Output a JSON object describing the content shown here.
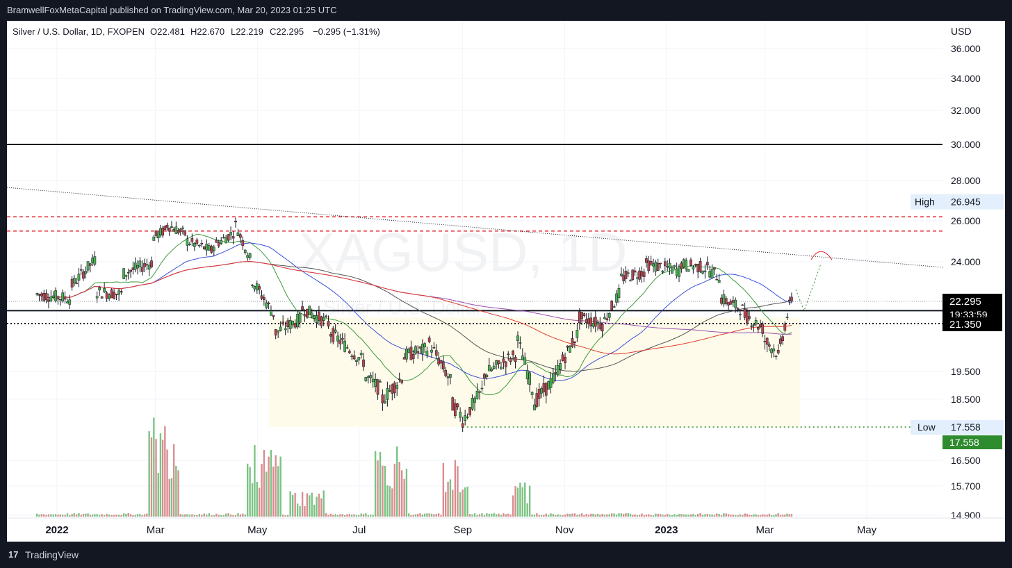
{
  "header": {
    "published": "BramwellFoxMetaCapital published on TradingView.com, Mar 20, 2023 01:25 UTC"
  },
  "footer": {
    "logo_glyph": "17",
    "brand": "TradingView"
  },
  "legend": {
    "symbol": "Silver / U.S. Dollar, 1D, FXOPEN",
    "open": "O22.481",
    "high": "H22.670",
    "low": "L22.219",
    "close": "C22.295",
    "change": "−0.295 (−1.31%)"
  },
  "watermark": {
    "symbol": "XAGUSD, 1D",
    "name": "Silver / U.S. Dollar"
  },
  "colors": {
    "bull": "#4caf50",
    "bear": "#b2474e",
    "vol_bull": "#7bc383",
    "vol_bear": "#d98e91",
    "ma_green": "#3c9a3c",
    "ma_blue": "#3a4fd6",
    "ma_dark": "#555555",
    "ma_purple": "#9c4fb0",
    "ma_red": "#e03c31",
    "resistance": "#e0202a",
    "low_line": "#2e8b2e",
    "range_fill": "#fffbea"
  },
  "chart_data": {
    "type": "candlestick",
    "y_axis_unit": "USD",
    "y_ticks": [
      "36.000",
      "34.000",
      "32.000",
      "30.000",
      "28.000",
      "26.000",
      "24.000",
      "19.500",
      "18.500",
      "16.500",
      "15.700",
      "14.900"
    ],
    "x_ticks": [
      "2022",
      "Mar",
      "May",
      "Jul",
      "Sep",
      "Nov",
      "2023",
      "Mar",
      "May"
    ],
    "high_label": "High",
    "high_value": "26.945",
    "low_label": "Low",
    "low_value": "17.558",
    "low_badge": "17.558",
    "last_price": "22.295",
    "countdown": "19:33:59",
    "support_label": "21.350",
    "horizontal_levels": {
      "resistance_solid": 30.0,
      "support_solid": 21.9,
      "support_dotted": 21.35,
      "red_dashed": [
        26.2,
        25.5
      ],
      "low_dotted": 17.558
    },
    "series": [
      {
        "date": "2021-12-20",
        "open": 22.4,
        "high": 22.9,
        "low": 21.9,
        "close": 22.6
      },
      {
        "date": "2022-01-10",
        "open": 22.4,
        "high": 23.4,
        "low": 22.0,
        "close": 23.0
      },
      {
        "date": "2022-01-25",
        "open": 24.2,
        "high": 24.8,
        "low": 22.5,
        "close": 22.7
      },
      {
        "date": "2022-02-10",
        "open": 22.6,
        "high": 23.8,
        "low": 22.2,
        "close": 23.5
      },
      {
        "date": "2022-02-28",
        "open": 24.0,
        "high": 25.6,
        "low": 23.8,
        "close": 25.2
      },
      {
        "date": "2022-03-08",
        "open": 25.6,
        "high": 26.945,
        "low": 25.1,
        "close": 25.8
      },
      {
        "date": "2022-03-20",
        "open": 25.3,
        "high": 25.8,
        "low": 24.6,
        "close": 25.0
      },
      {
        "date": "2022-04-05",
        "open": 24.5,
        "high": 25.0,
        "low": 24.1,
        "close": 24.8
      },
      {
        "date": "2022-04-18",
        "open": 25.5,
        "high": 26.2,
        "low": 25.1,
        "close": 25.8
      },
      {
        "date": "2022-04-28",
        "open": 23.9,
        "high": 24.3,
        "low": 23.0,
        "close": 23.2
      },
      {
        "date": "2022-05-12",
        "open": 21.6,
        "high": 22.0,
        "low": 20.5,
        "close": 21.0
      },
      {
        "date": "2022-05-28",
        "open": 21.6,
        "high": 22.3,
        "low": 21.4,
        "close": 22.0
      },
      {
        "date": "2022-06-14",
        "open": 21.3,
        "high": 21.6,
        "low": 20.8,
        "close": 21.0
      },
      {
        "date": "2022-07-05",
        "open": 19.8,
        "high": 20.0,
        "low": 19.0,
        "close": 19.3
      },
      {
        "date": "2022-07-15",
        "open": 18.8,
        "high": 19.1,
        "low": 18.1,
        "close": 18.5
      },
      {
        "date": "2022-07-28",
        "open": 19.4,
        "high": 20.3,
        "low": 19.1,
        "close": 20.1
      },
      {
        "date": "2022-08-12",
        "open": 20.4,
        "high": 20.9,
        "low": 20.0,
        "close": 20.6
      },
      {
        "date": "2022-08-26",
        "open": 19.0,
        "high": 19.3,
        "low": 18.0,
        "close": 18.3
      },
      {
        "date": "2022-09-01",
        "open": 17.9,
        "high": 18.1,
        "low": 17.558,
        "close": 17.8
      },
      {
        "date": "2022-09-14",
        "open": 18.9,
        "high": 19.6,
        "low": 18.6,
        "close": 19.4
      },
      {
        "date": "2022-10-04",
        "open": 20.2,
        "high": 21.2,
        "low": 19.8,
        "close": 20.7
      },
      {
        "date": "2022-10-14",
        "open": 18.6,
        "high": 18.9,
        "low": 18.2,
        "close": 18.4
      },
      {
        "date": "2022-10-28",
        "open": 19.4,
        "high": 19.9,
        "low": 19.0,
        "close": 19.6
      },
      {
        "date": "2022-11-10",
        "open": 21.1,
        "high": 21.8,
        "low": 20.8,
        "close": 21.6
      },
      {
        "date": "2022-11-25",
        "open": 21.3,
        "high": 21.7,
        "low": 20.9,
        "close": 21.5
      },
      {
        "date": "2022-12-05",
        "open": 22.8,
        "high": 23.6,
        "low": 22.6,
        "close": 23.3
      },
      {
        "date": "2022-12-20",
        "open": 23.6,
        "high": 24.2,
        "low": 23.2,
        "close": 23.9
      },
      {
        "date": "2023-01-10",
        "open": 23.6,
        "high": 24.4,
        "low": 23.2,
        "close": 23.9
      },
      {
        "date": "2023-01-27",
        "open": 23.7,
        "high": 24.5,
        "low": 23.3,
        "close": 23.6
      },
      {
        "date": "2023-02-03",
        "open": 23.3,
        "high": 23.4,
        "low": 22.2,
        "close": 22.4
      },
      {
        "date": "2023-02-17",
        "open": 21.9,
        "high": 22.1,
        "low": 21.5,
        "close": 21.7
      },
      {
        "date": "2023-03-01",
        "open": 21.1,
        "high": 21.3,
        "low": 20.4,
        "close": 20.7
      },
      {
        "date": "2023-03-09",
        "open": 20.2,
        "high": 20.4,
        "low": 19.9,
        "close": 20.1
      },
      {
        "date": "2023-03-17",
        "open": 22.481,
        "high": 22.67,
        "low": 22.219,
        "close": 22.295
      }
    ]
  }
}
